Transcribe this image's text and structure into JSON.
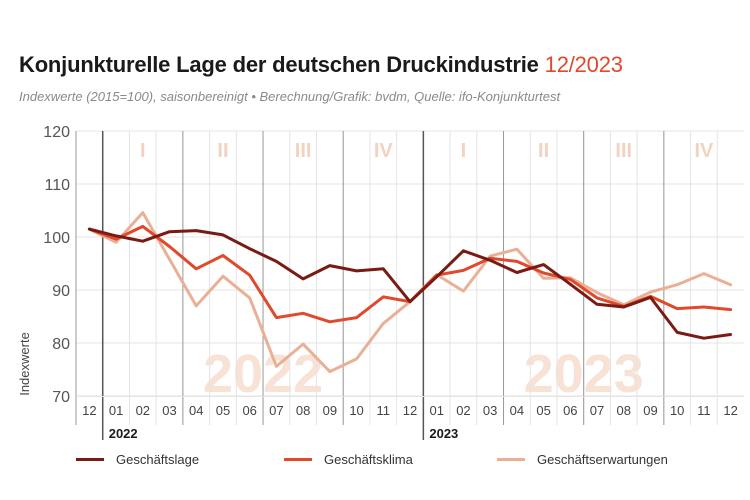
{
  "header": {
    "title": "Konjunkturelle Lage der deutschen Druckindustrie",
    "title_date": "12/2023",
    "subtitle": "Indexwerte (2015=100), saisonbereinigt • Berechnung/Grafik: bvdm, Quelle: ifo-Konjunkturtest"
  },
  "colors": {
    "accent": "#e0492b",
    "grid": "#e4e4e4",
    "year_divider": "#555555",
    "quarter_label": "#f2d3c0",
    "watermark": "#f8e2d6"
  },
  "chart_data": {
    "type": "line",
    "title": "Konjunkturelle Lage der deutschen Druckindustrie 12/2023",
    "subtitle": "Indexwerte (2015=100), saisonbereinigt • Berechnung/Grafik: bvdm, Quelle: ifo-Konjunkturtest",
    "ylabel": "Indexwerte",
    "xlabel": "",
    "ylim": [
      70,
      120
    ],
    "yticks": [
      70,
      80,
      90,
      100,
      110,
      120
    ],
    "grid": true,
    "legend_position": "bottom",
    "categories": [
      "12",
      "01",
      "02",
      "03",
      "04",
      "05",
      "06",
      "07",
      "08",
      "09",
      "10",
      "11",
      "12",
      "01",
      "02",
      "03",
      "04",
      "05",
      "06",
      "07",
      "08",
      "09",
      "10",
      "11",
      "12"
    ],
    "year_labels": [
      {
        "label": "2022",
        "start_index": 1
      },
      {
        "label": "2023",
        "start_index": 13
      }
    ],
    "quarter_labels": [
      "I",
      "II",
      "III",
      "IV",
      "I",
      "II",
      "III",
      "IV"
    ],
    "watermarks": [
      {
        "text": "2022",
        "center_index": 6.5
      },
      {
        "text": "2023",
        "center_index": 18.5
      }
    ],
    "series": [
      {
        "name": "Geschäftslage",
        "color": "#7a1a14",
        "values": [
          101.5,
          100.2,
          99.2,
          101.0,
          101.2,
          100.4,
          97.8,
          95.4,
          92.1,
          94.6,
          93.6,
          94.0,
          87.8,
          92.5,
          97.4,
          95.6,
          93.3,
          94.8,
          91.1,
          87.3,
          86.8,
          88.6,
          82.0,
          80.9,
          81.6
        ]
      },
      {
        "name": "Geschäftsklima",
        "color": "#e0492b",
        "values": [
          101.5,
          99.6,
          102.0,
          98.2,
          94.0,
          96.5,
          92.8,
          84.8,
          85.6,
          84.0,
          84.8,
          88.7,
          87.8,
          92.8,
          93.7,
          96.0,
          95.4,
          93.2,
          92.0,
          88.5,
          86.9,
          88.8,
          86.5,
          86.8,
          86.3
        ]
      },
      {
        "name": "Geschäftserwartungen",
        "color": "#eab096",
        "values": [
          101.5,
          99.0,
          104.6,
          95.8,
          87.0,
          92.6,
          88.5,
          75.6,
          79.8,
          74.6,
          77.0,
          83.7,
          87.8,
          92.9,
          89.8,
          96.4,
          97.7,
          92.2,
          92.3,
          89.5,
          87.2,
          89.6,
          91.0,
          93.1,
          91.0
        ]
      }
    ]
  }
}
